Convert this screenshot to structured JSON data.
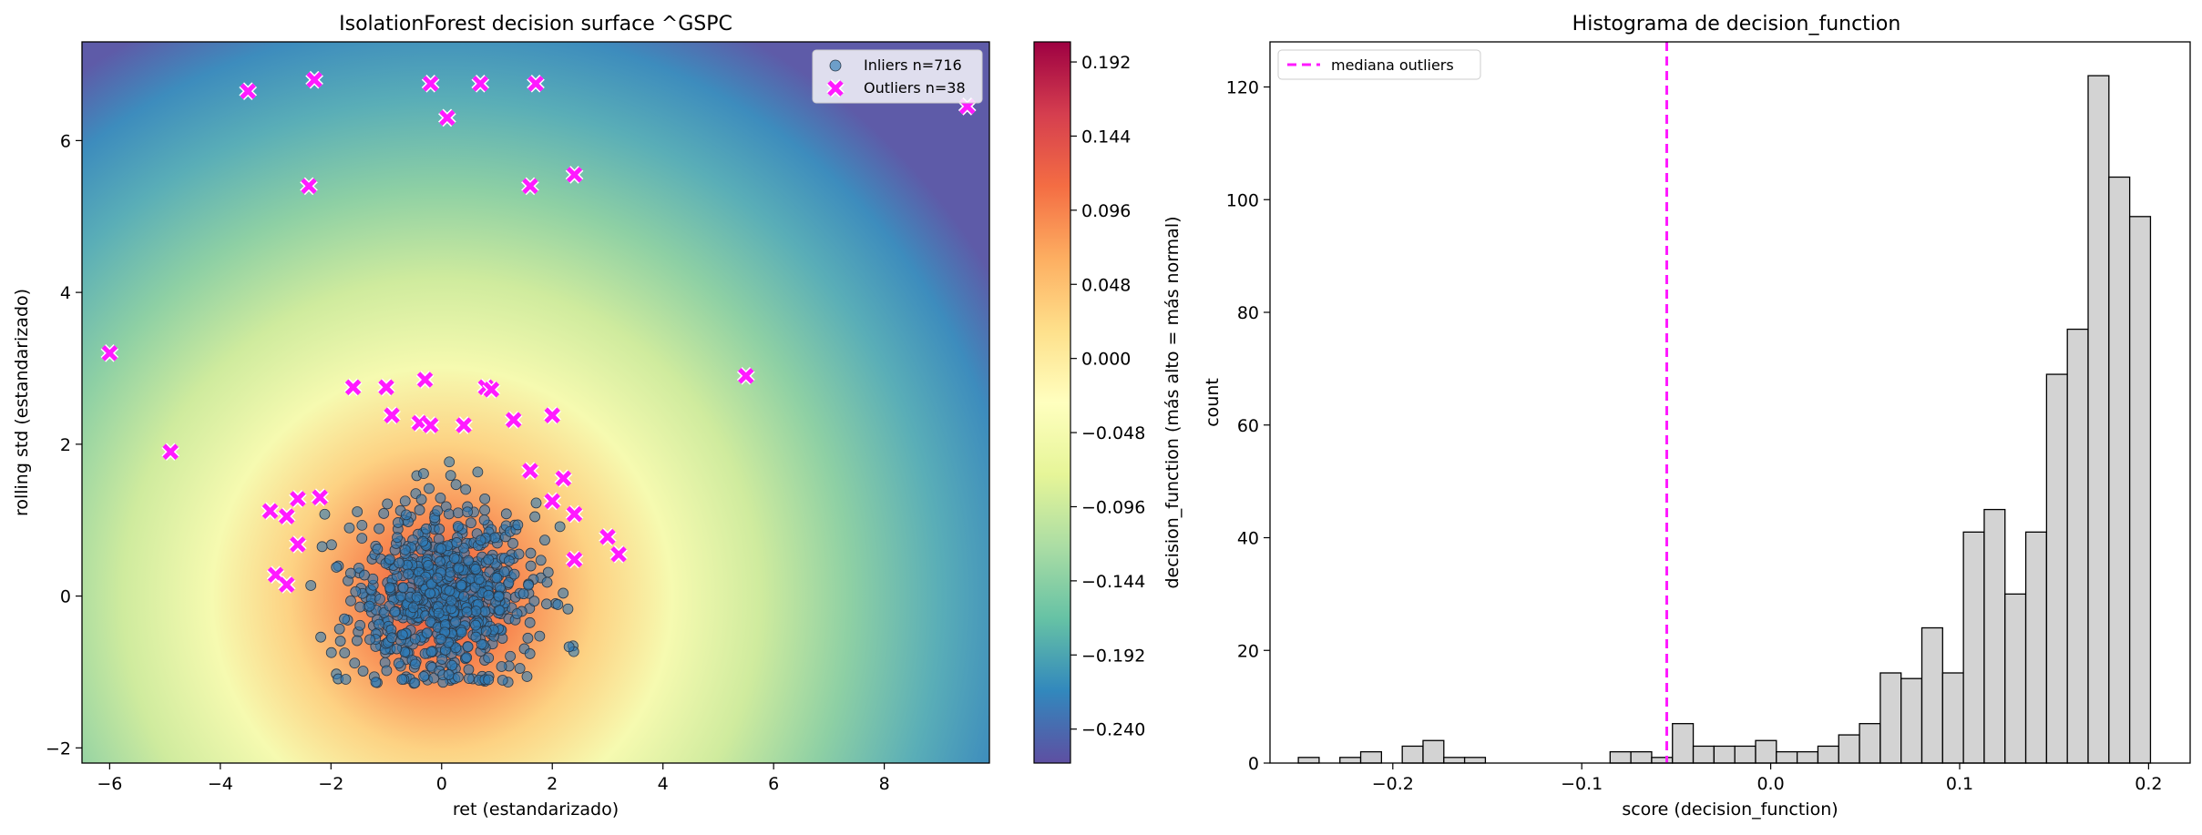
{
  "chart_data": [
    {
      "type": "scatter",
      "title": "IsolationForest decision surface ^GSPC",
      "xlabel": "ret (estandarizado)",
      "ylabel": "rolling std (estandarizado)",
      "xlim": [
        -6.5,
        9.9
      ],
      "ylim": [
        -2.2,
        7.3
      ],
      "xticks": [
        -6,
        -4,
        -2,
        0,
        2,
        4,
        6,
        8
      ],
      "yticks": [
        -2,
        0,
        2,
        4,
        6
      ],
      "xtick_labels": [
        "−6",
        "−4",
        "−2",
        "0",
        "2",
        "4",
        "6",
        "8"
      ],
      "ytick_labels": [
        "−2",
        "0",
        "2",
        "4",
        "6"
      ],
      "legend_position": "top-right",
      "background": "decision_function surface (colormap Spectral_r)",
      "series": [
        {
          "name": "Inliers n=716",
          "marker": "circle",
          "color": "#2f7bb6",
          "edge_color": "#2b3a4a",
          "cluster": {
            "center": [
              0,
              0
            ],
            "spread_x": 1.1,
            "spread_y": 0.8,
            "count": 716
          }
        },
        {
          "name": "Outliers n=38",
          "marker": "x",
          "color": "#ff1aff",
          "points": [
            [
              -3.5,
              6.65
            ],
            [
              -2.3,
              6.8
            ],
            [
              -0.2,
              6.75
            ],
            [
              0.7,
              6.75
            ],
            [
              1.7,
              6.75
            ],
            [
              0.1,
              6.3
            ],
            [
              9.5,
              6.45
            ],
            [
              -2.4,
              5.4
            ],
            [
              1.6,
              5.4
            ],
            [
              2.4,
              5.55
            ],
            [
              -6.0,
              3.2
            ],
            [
              5.5,
              2.9
            ],
            [
              -4.9,
              1.9
            ],
            [
              -1.6,
              2.75
            ],
            [
              -1.0,
              2.75
            ],
            [
              -0.3,
              2.85
            ],
            [
              0.8,
              2.75
            ],
            [
              -0.9,
              2.38
            ],
            [
              -0.4,
              2.28
            ],
            [
              0.4,
              2.25
            ],
            [
              1.3,
              2.32
            ],
            [
              2.0,
              2.38
            ],
            [
              1.6,
              1.65
            ],
            [
              2.2,
              1.55
            ],
            [
              -3.1,
              1.12
            ],
            [
              -2.8,
              1.05
            ],
            [
              -2.6,
              1.28
            ],
            [
              -2.2,
              1.3
            ],
            [
              2.0,
              1.25
            ],
            [
              2.4,
              1.08
            ],
            [
              -2.6,
              0.68
            ],
            [
              3.0,
              0.78
            ],
            [
              -3.0,
              0.28
            ],
            [
              -2.8,
              0.15
            ],
            [
              3.2,
              0.55
            ],
            [
              2.4,
              0.48
            ],
            [
              -0.2,
              2.25
            ],
            [
              0.9,
              2.72
            ]
          ]
        }
      ],
      "colorbar": {
        "label": "decision_function (más alto = más normal)",
        "range": [
          -0.262,
          0.205
        ],
        "ticks": [
          0.192,
          0.144,
          0.096,
          0.048,
          0.0,
          -0.048,
          -0.096,
          -0.144,
          -0.192,
          -0.24
        ],
        "tick_labels": [
          "0.192",
          "0.144",
          "0.096",
          "0.048",
          "0.000",
          "−0.048",
          "−0.096",
          "−0.144",
          "−0.192",
          "−0.240"
        ],
        "colormap": [
          "#5e4fa2",
          "#3288bd",
          "#66c2a5",
          "#abdda4",
          "#e6f598",
          "#ffffbf",
          "#fee08b",
          "#fdae61",
          "#f46d43",
          "#d53e4f",
          "#9e0142"
        ]
      }
    },
    {
      "type": "bar",
      "title": "Histograma de decision_function",
      "xlabel": "score (decision_function)",
      "ylabel": "count",
      "xlim": [
        -0.265,
        0.222
      ],
      "ylim": [
        0,
        128
      ],
      "xticks": [
        -0.2,
        -0.1,
        0.0,
        0.1,
        0.2
      ],
      "yticks": [
        0,
        20,
        40,
        60,
        80,
        100,
        120
      ],
      "xtick_labels": [
        "−0.2",
        "−0.1",
        "0.0",
        "0.1",
        "0.2"
      ],
      "ytick_labels": [
        "0",
        "20",
        "40",
        "60",
        "80",
        "100",
        "120"
      ],
      "bin_start": -0.25,
      "bin_width": 0.011,
      "values": [
        1,
        0,
        1,
        2,
        0,
        3,
        4,
        1,
        1,
        0,
        0,
        0,
        0,
        0,
        0,
        2,
        2,
        1,
        7,
        3,
        3,
        3,
        4,
        2,
        2,
        3,
        5,
        7,
        16,
        15,
        24,
        16,
        41,
        45,
        30,
        41,
        69,
        77,
        122,
        104,
        97
      ],
      "bar_color": "#d3d3d3",
      "edge_color": "#000000",
      "vline": {
        "x": -0.055,
        "label": "mediana outliers",
        "color": "#ff1aff",
        "style": "dashed"
      },
      "legend_position": "top-left"
    }
  ]
}
